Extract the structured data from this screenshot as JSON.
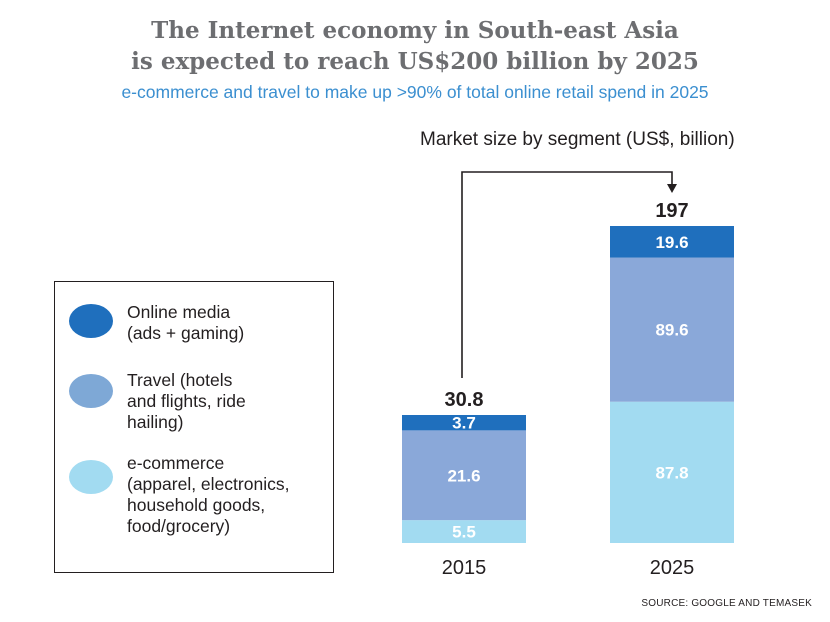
{
  "title_line1": "The Internet economy in South-east Asia",
  "title_line2": "is expected to reach US$200 billion by 2025",
  "subtitle": "e-commerce and travel to make up >90% of total online retail spend in 2025",
  "source": "SOURCE: GOOGLE AND TEMASEK",
  "legend": [
    {
      "label": "Online media\n(ads + gaming)",
      "color": "#1f6fbd"
    },
    {
      "label": "Travel (hotels\nand flights, ride\nhailing)",
      "color": "#7ea8d6"
    },
    {
      "label": "e-commerce\n(apparel, electronics,\nhousehold goods,\nfood/grocery)",
      "color": "#a2dbf1"
    }
  ],
  "chart_data": {
    "type": "bar",
    "stacked": true,
    "title": "Market size by segment (US$, billion)",
    "categories": [
      "2015",
      "2025"
    ],
    "totals": [
      "30.8",
      "197"
    ],
    "series": [
      {
        "name": "e-commerce (apparel, electronics, household goods, food/grocery)",
        "values": [
          5.5,
          87.8
        ],
        "color": "#a2dbf1"
      },
      {
        "name": "Travel (hotels and flights, ride hailing)",
        "values": [
          21.6,
          89.6
        ],
        "color": "#8aa8d9"
      },
      {
        "name": "Online media (ads + gaming)",
        "values": [
          3.7,
          19.6
        ],
        "color": "#1f6fbd"
      }
    ],
    "legend_position": "left",
    "grid": false
  }
}
